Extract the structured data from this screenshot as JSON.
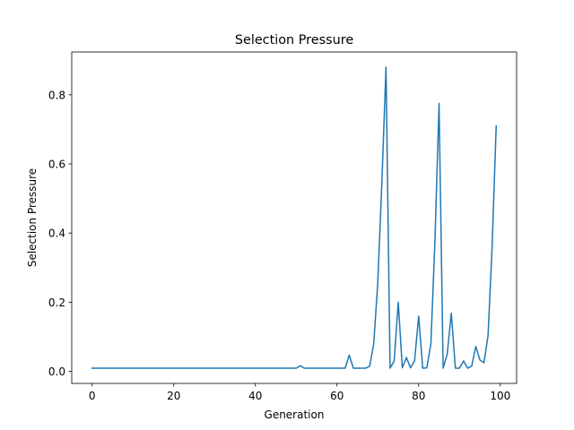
{
  "chart_data": {
    "type": "line",
    "title": "Selection Pressure",
    "xlabel": "Generation",
    "ylabel": "Selection Pressure",
    "xlim": [
      -5,
      104
    ],
    "ylim": [
      -0.035,
      0.924
    ],
    "xticks": [
      0,
      20,
      40,
      60,
      80,
      100
    ],
    "xtick_labels": [
      "0",
      "20",
      "40",
      "60",
      "80",
      "100"
    ],
    "yticks": [
      0.0,
      0.2,
      0.4,
      0.6,
      0.8
    ],
    "ytick_labels": [
      "0.0",
      "0.2",
      "0.4",
      "0.6",
      "0.8"
    ],
    "grid": false,
    "legend": "none",
    "series": [
      {
        "color": "#1f77b4",
        "x": [
          0,
          1,
          2,
          3,
          4,
          5,
          6,
          7,
          8,
          9,
          10,
          11,
          12,
          13,
          14,
          15,
          16,
          17,
          18,
          19,
          20,
          21,
          22,
          23,
          24,
          25,
          26,
          27,
          28,
          29,
          30,
          31,
          32,
          33,
          34,
          35,
          36,
          37,
          38,
          39,
          40,
          41,
          42,
          43,
          44,
          45,
          46,
          47,
          48,
          49,
          50,
          51,
          52,
          53,
          54,
          55,
          56,
          57,
          58,
          59,
          60,
          61,
          62,
          63,
          64,
          65,
          66,
          67,
          68,
          69,
          70,
          71,
          72,
          73,
          74,
          75,
          76,
          77,
          78,
          79,
          80,
          81,
          82,
          83,
          84,
          85,
          86,
          87,
          88,
          89,
          90,
          91,
          92,
          93,
          94,
          95,
          96,
          97,
          98,
          99
        ],
        "y": [
          0.009,
          0.009,
          0.009,
          0.009,
          0.009,
          0.009,
          0.009,
          0.009,
          0.009,
          0.009,
          0.009,
          0.009,
          0.009,
          0.009,
          0.009,
          0.009,
          0.009,
          0.009,
          0.009,
          0.009,
          0.009,
          0.009,
          0.009,
          0.009,
          0.009,
          0.009,
          0.009,
          0.009,
          0.009,
          0.009,
          0.009,
          0.009,
          0.009,
          0.009,
          0.009,
          0.009,
          0.009,
          0.009,
          0.009,
          0.009,
          0.009,
          0.009,
          0.009,
          0.009,
          0.009,
          0.009,
          0.009,
          0.009,
          0.009,
          0.009,
          0.009,
          0.016,
          0.009,
          0.009,
          0.009,
          0.009,
          0.009,
          0.009,
          0.009,
          0.009,
          0.009,
          0.009,
          0.009,
          0.047,
          0.009,
          0.009,
          0.009,
          0.009,
          0.015,
          0.08,
          0.26,
          0.55,
          0.88,
          0.009,
          0.03,
          0.2,
          0.01,
          0.04,
          0.01,
          0.03,
          0.16,
          0.009,
          0.01,
          0.08,
          0.38,
          0.775,
          0.009,
          0.05,
          0.168,
          0.009,
          0.009,
          0.03,
          0.009,
          0.015,
          0.072,
          0.033,
          0.025,
          0.103,
          0.36,
          0.71
        ]
      }
    ]
  }
}
